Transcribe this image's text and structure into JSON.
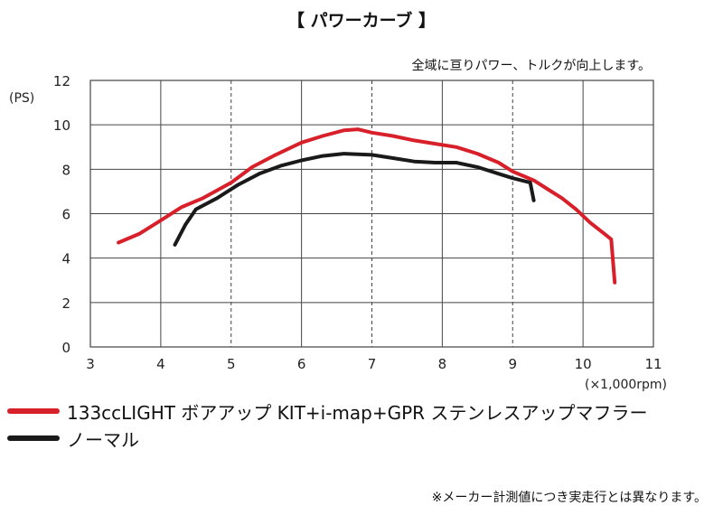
{
  "title": "【 パワーカーブ 】",
  "subtitle": "全域に亘りパワー、トルクが向上します。",
  "footnote": "※メーカー計測値につき実走行とは異なります。",
  "colors": {
    "red": "#d8202a",
    "black": "#1a1a1a",
    "grid": "#444444"
  },
  "chart_data": {
    "type": "line",
    "ylabel": "(PS)",
    "xlabel": "(×1,000rpm)",
    "xlim": [
      3,
      11
    ],
    "ylim": [
      0,
      12
    ],
    "xticks": [
      "3",
      "4",
      "5",
      "6",
      "7",
      "8",
      "9",
      "10",
      "11"
    ],
    "yticks": [
      "0",
      "2",
      "4",
      "6",
      "8",
      "10",
      "12"
    ],
    "grid": true,
    "legend": "bottom-left",
    "series": [
      {
        "name": "133ccLIGHT ボアアップ KIT+i-map+GPR ステンレスアップマフラー",
        "color": "#d8202a",
        "points": [
          [
            3.4,
            4.7
          ],
          [
            3.7,
            5.1
          ],
          [
            4.0,
            5.7
          ],
          [
            4.3,
            6.3
          ],
          [
            4.6,
            6.7
          ],
          [
            5.0,
            7.4
          ],
          [
            5.3,
            8.1
          ],
          [
            5.6,
            8.6
          ],
          [
            6.0,
            9.2
          ],
          [
            6.3,
            9.5
          ],
          [
            6.6,
            9.75
          ],
          [
            6.8,
            9.8
          ],
          [
            7.0,
            9.65
          ],
          [
            7.3,
            9.5
          ],
          [
            7.6,
            9.3
          ],
          [
            7.9,
            9.15
          ],
          [
            8.2,
            9.0
          ],
          [
            8.5,
            8.7
          ],
          [
            8.8,
            8.3
          ],
          [
            9.0,
            7.9
          ],
          [
            9.3,
            7.5
          ],
          [
            9.5,
            7.1
          ],
          [
            9.7,
            6.7
          ],
          [
            9.9,
            6.2
          ],
          [
            10.1,
            5.6
          ],
          [
            10.3,
            5.1
          ],
          [
            10.4,
            4.85
          ],
          [
            10.45,
            2.9
          ]
        ]
      },
      {
        "name": "ノーマル",
        "color": "#1a1a1a",
        "points": [
          [
            4.2,
            4.6
          ],
          [
            4.35,
            5.5
          ],
          [
            4.5,
            6.2
          ],
          [
            4.8,
            6.7
          ],
          [
            5.1,
            7.3
          ],
          [
            5.4,
            7.8
          ],
          [
            5.7,
            8.15
          ],
          [
            6.0,
            8.4
          ],
          [
            6.3,
            8.6
          ],
          [
            6.6,
            8.7
          ],
          [
            7.0,
            8.65
          ],
          [
            7.3,
            8.5
          ],
          [
            7.6,
            8.35
          ],
          [
            7.9,
            8.3
          ],
          [
            8.2,
            8.3
          ],
          [
            8.5,
            8.1
          ],
          [
            8.8,
            7.8
          ],
          [
            9.0,
            7.6
          ],
          [
            9.25,
            7.4
          ],
          [
            9.3,
            6.6
          ]
        ]
      }
    ]
  }
}
